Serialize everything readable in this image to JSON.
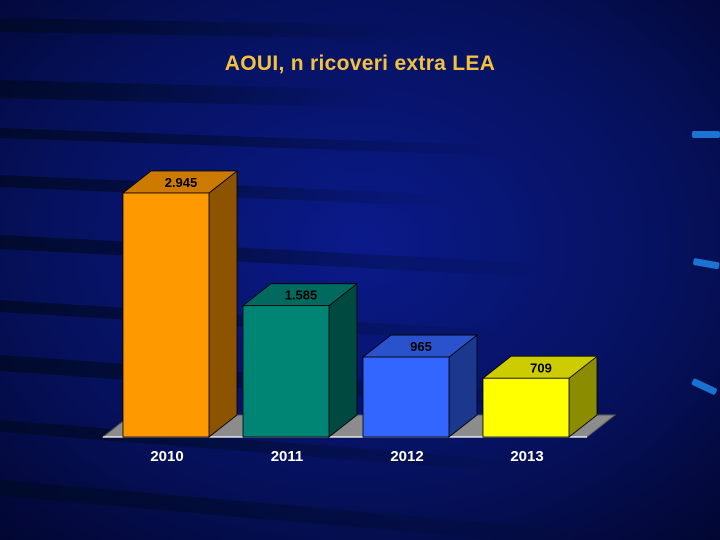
{
  "slide": {
    "title": "AOUI, n ricoveri extra LEA"
  },
  "chart_data": {
    "type": "bar",
    "title": "AOUI, n ricoveri extra LEA",
    "xlabel": "",
    "ylabel": "",
    "categories": [
      "2010",
      "2011",
      "2012",
      "2013"
    ],
    "values": [
      2945,
      1585,
      965,
      709
    ],
    "value_labels": [
      "2.945",
      "1.585",
      "965",
      "709"
    ],
    "ylim": [
      0,
      2945
    ],
    "style": "3d-columns",
    "grid": false,
    "legend": "none",
    "colors": {
      "bars": [
        "#ff9900",
        "#008575",
        "#3366ff",
        "#ffff00"
      ],
      "background": "#000833",
      "title": "#f2c23e",
      "axis_labels": "#ffffff",
      "value_labels": "#000000"
    }
  }
}
